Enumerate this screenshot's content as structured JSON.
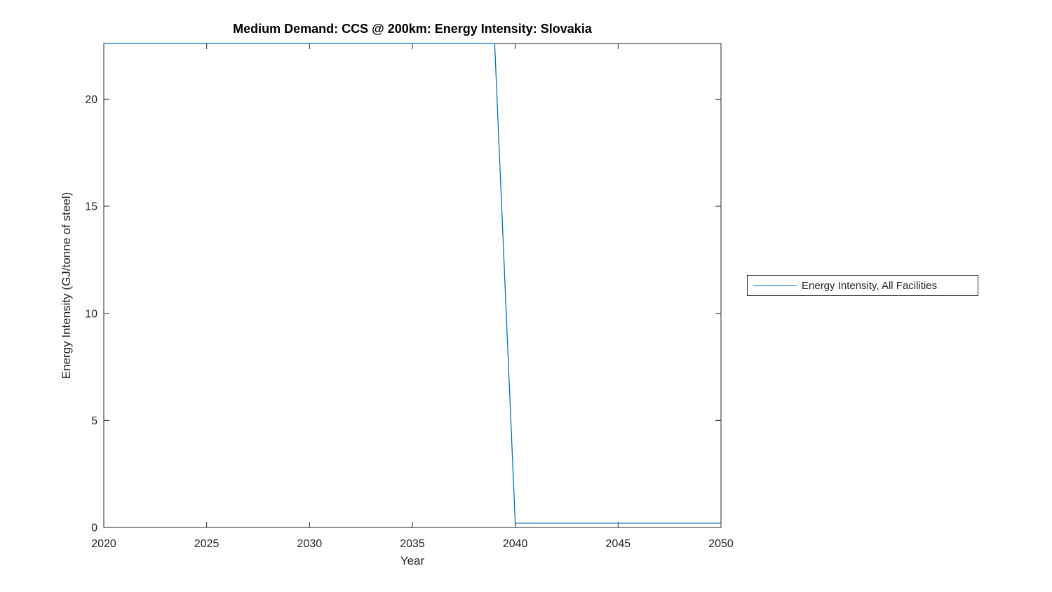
{
  "chart_data": {
    "type": "line",
    "title": "Medium Demand: CCS @ 200km: Energy Intensity: Slovakia",
    "xlabel": "Year",
    "ylabel": "Energy Intensity (GJ/tonne of steel)",
    "xlim": [
      2020,
      2050
    ],
    "ylim": [
      0,
      22.6
    ],
    "xticks": [
      2020,
      2025,
      2030,
      2035,
      2040,
      2045,
      2050
    ],
    "yticks": [
      0,
      5,
      10,
      15,
      20
    ],
    "grid": false,
    "box": true,
    "legend_position": "right-outside",
    "axis_color": "#262626",
    "series": [
      {
        "name": "Energy Intensity, All Facilities",
        "color": "#0072BD",
        "x": [
          2020,
          2039,
          2040,
          2050
        ],
        "y": [
          22.6,
          22.6,
          0.2,
          0.2
        ],
        "note": "Flat at axis top (~22.6 GJ/tonne, clipped by top axis) from 2020 through 2039, steep linear drop to ~0.2 at 2040, then flat at ~0.2 through 2050"
      }
    ]
  }
}
